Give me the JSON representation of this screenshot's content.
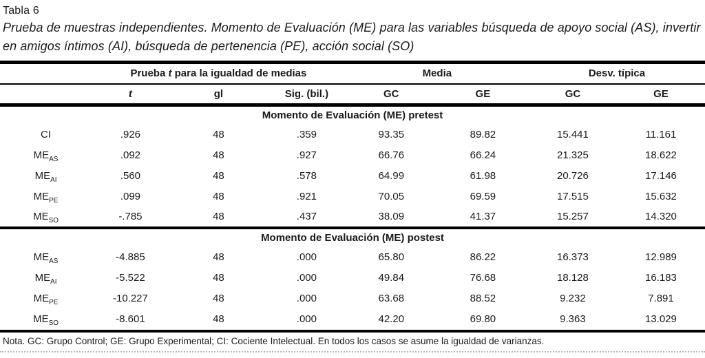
{
  "title": {
    "label": "Tabla 6",
    "caption": "Prueba de muestras independientes. Momento de Evaluación (ME) para las variables búsqueda de apoyo social (AS), invertir en amigos íntimos (AI), búsqueda de pertenencia (PE), acción social (SO)"
  },
  "table": {
    "group_headers": {
      "ttest_pre": "Prueba ",
      "ttest_italic": "t",
      "ttest_post": " para la igualdad de medias",
      "media": "Media",
      "desv": "Desv. típica"
    },
    "columns": {
      "t": "t",
      "gl": "gl",
      "sig": "Sig. (bil.)",
      "gc1": "GC",
      "ge1": "GE",
      "gc2": "GC",
      "ge2": "GE"
    },
    "sections": [
      {
        "header": "Momento de Evaluación (ME) pretest",
        "rows": [
          {
            "label": "CI",
            "sub": "",
            "values": [
              ".926",
              "48",
              ".359",
              "93.35",
              "89.82",
              "15.441",
              "11.161"
            ]
          },
          {
            "label": "ME",
            "sub": "AS",
            "values": [
              ".092",
              "48",
              ".927",
              "66.76",
              "66.24",
              "21.325",
              "18.622"
            ]
          },
          {
            "label": "ME",
            "sub": "AI",
            "values": [
              ".560",
              "48",
              ".578",
              "64.99",
              "61.98",
              "20.726",
              "17.146"
            ]
          },
          {
            "label": "ME",
            "sub": "PE",
            "values": [
              ".099",
              "48",
              ".921",
              "70.05",
              "69.59",
              "17.515",
              "15.632"
            ]
          },
          {
            "label": "ME",
            "sub": "SO",
            "values": [
              "-.785",
              "48",
              ".437",
              "38.09",
              "41.37",
              "15.257",
              "14.320"
            ]
          }
        ]
      },
      {
        "header": "Momento de Evaluación (ME) postest",
        "rows": [
          {
            "label": "ME",
            "sub": "AS",
            "values": [
              "-4.885",
              "48",
              ".000",
              "65.80",
              "86.22",
              "16.373",
              "12.989"
            ]
          },
          {
            "label": "ME",
            "sub": "AI",
            "values": [
              "-5.522",
              "48",
              ".000",
              "49.84",
              "76.68",
              "18.128",
              "16.183"
            ]
          },
          {
            "label": "ME",
            "sub": "PE",
            "values": [
              "-10.227",
              "48",
              ".000",
              "63.68",
              "88.52",
              "9.232",
              "7.891"
            ]
          },
          {
            "label": "ME",
            "sub": "SO",
            "values": [
              "-8.601",
              "48",
              ".000",
              "42.20",
              "69.80",
              "9.363",
              "13.029"
            ]
          }
        ]
      }
    ],
    "note": "Nota. GC: Grupo Control; GE: Grupo Experimental; CI: Cociente Intelectual. En todos los casos se asume la igualdad de varianzas."
  },
  "colors": {
    "text": "#1a1a1a",
    "rule": "#000000",
    "background": "#ffffff"
  }
}
